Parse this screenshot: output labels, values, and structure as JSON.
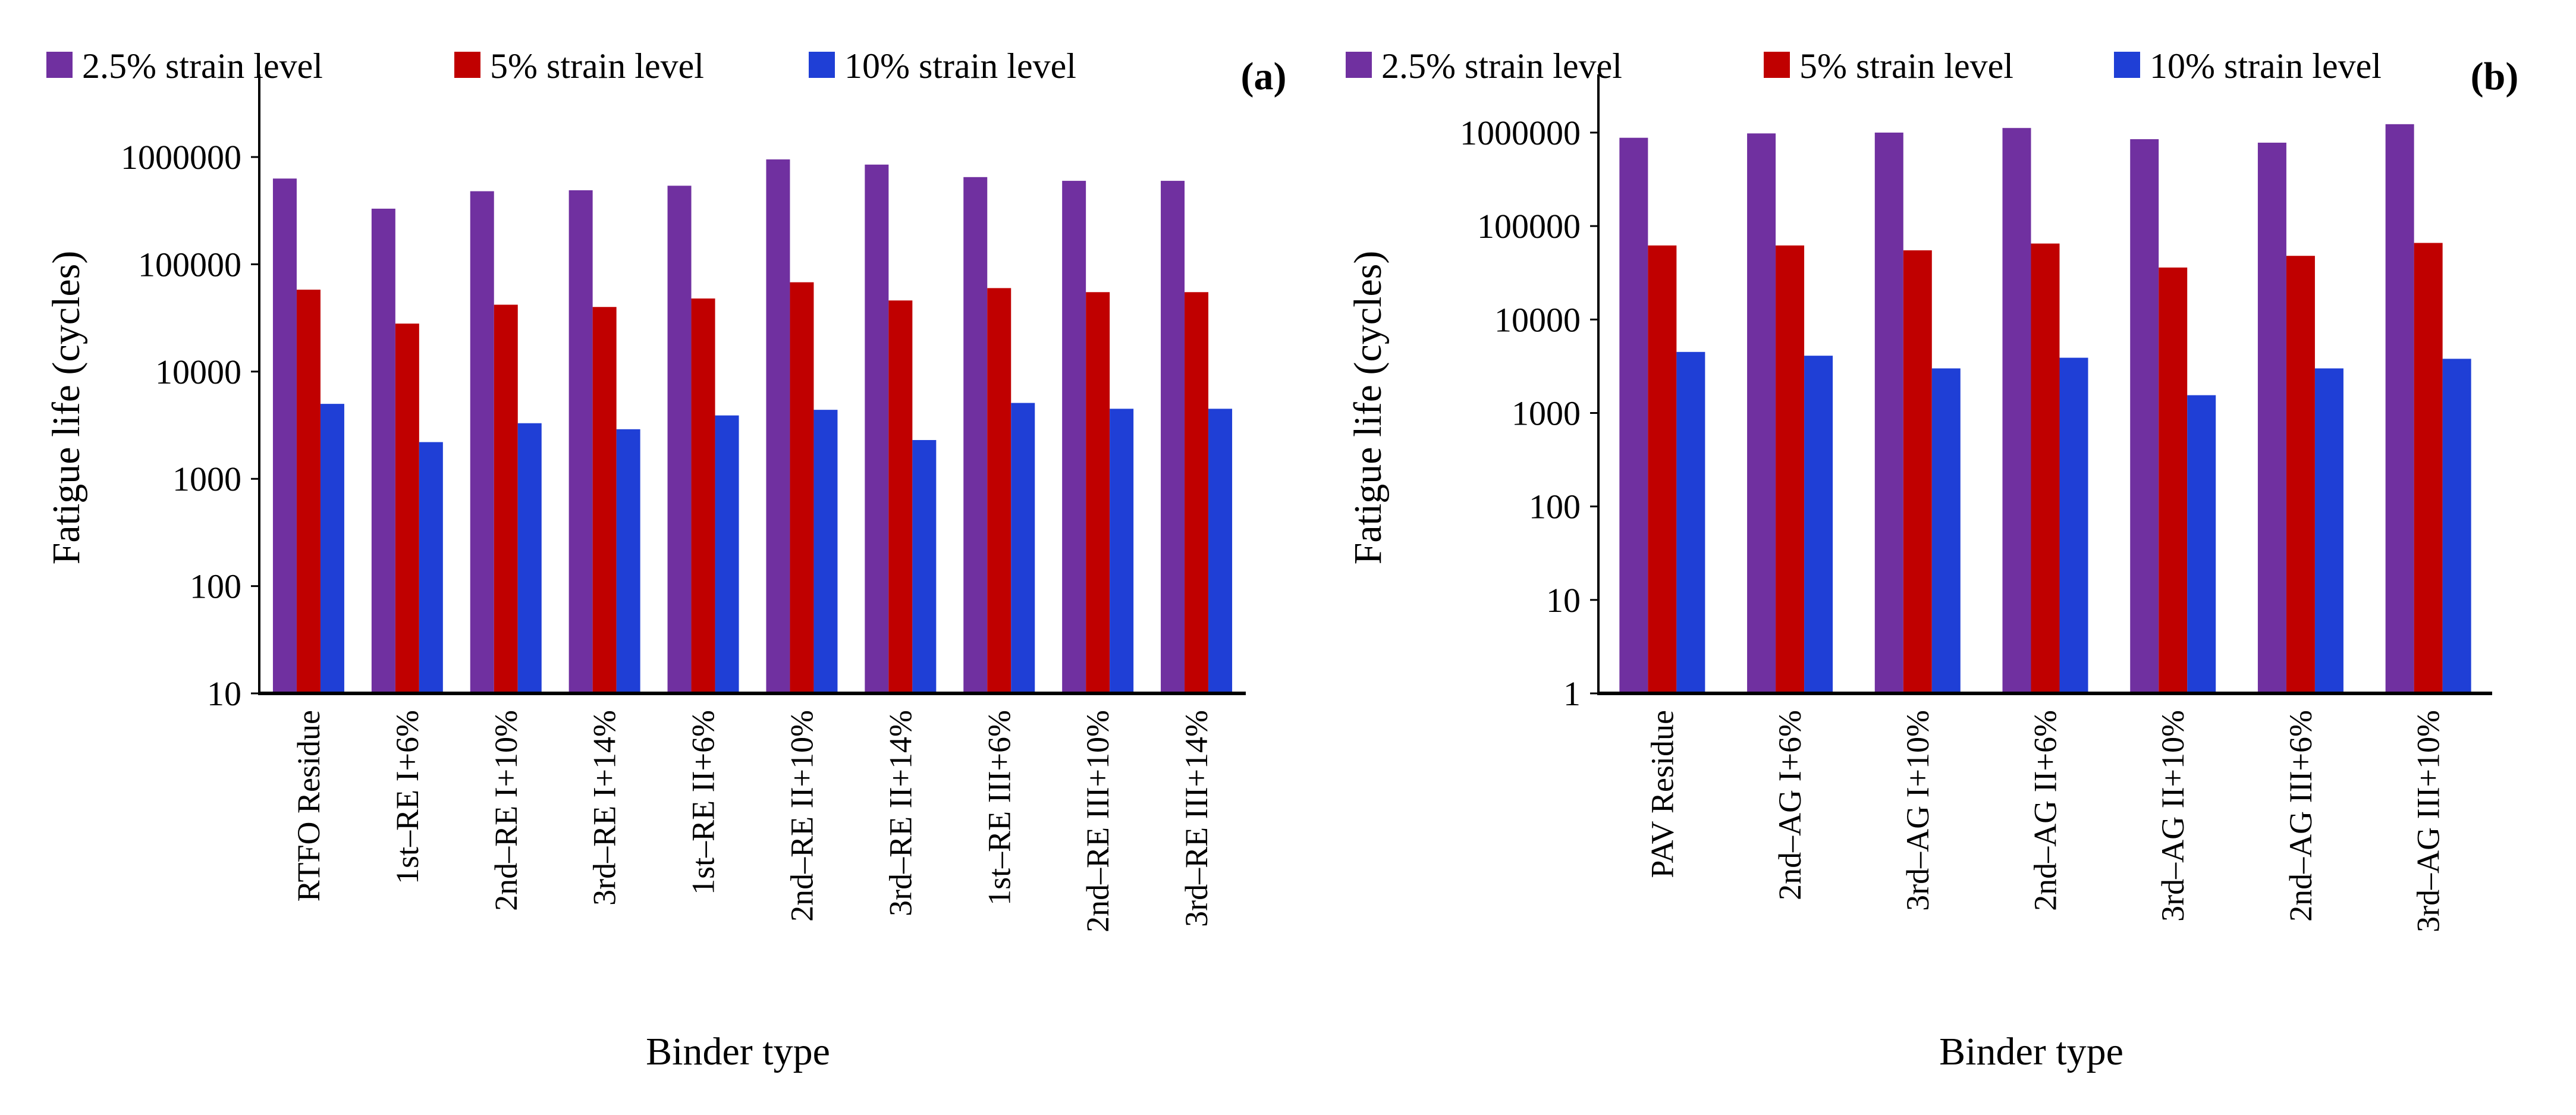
{
  "colors": {
    "s25": "#7030a0",
    "s5": "#c00000",
    "s10": "#1f3fd6"
  },
  "chart_data": [
    {
      "type": "bar",
      "panel_label": "(a)",
      "title": "",
      "xlabel": "Binder type",
      "ylabel": "Fatigue life (cycles)",
      "yscale": "log",
      "ylim": [
        10,
        5900000
      ],
      "yticks": [
        10,
        100,
        1000,
        10000,
        100000,
        1000000
      ],
      "ytick_labels": [
        "10",
        "100",
        "1000",
        "10000",
        "100000",
        "1000000"
      ],
      "legend": [
        "2.5% strain level",
        "5% strain level",
        "10% strain level"
      ],
      "legend_position": "top",
      "categories": [
        "RTFO Residue",
        "1st–RE I+6%",
        "2nd–RE I+10%",
        "3rd–RE I+14%",
        "1st–RE II+6%",
        "2nd–RE II+10%",
        "3rd–RE II+14%",
        "1st–RE III+6%",
        "2nd–RE III+10%",
        "3rd–RE III+14%"
      ],
      "series": [
        {
          "name": "2.5% strain level",
          "values": [
            630000,
            330000,
            480000,
            490000,
            540000,
            950000,
            850000,
            650000,
            600000,
            600000
          ]
        },
        {
          "name": "5% strain level",
          "values": [
            58000,
            28000,
            42000,
            40000,
            48000,
            68000,
            46000,
            60000,
            55000,
            55000
          ]
        },
        {
          "name": "10% strain level",
          "values": [
            5000,
            2200,
            3300,
            2900,
            3900,
            4400,
            2300,
            5100,
            4500,
            4500
          ]
        }
      ]
    },
    {
      "type": "bar",
      "panel_label": "(b)",
      "title": "",
      "xlabel": "Binder type",
      "ylabel": "Fatigue life (cycles)",
      "yscale": "log",
      "ylim": [
        1,
        4200000
      ],
      "yticks": [
        1,
        10,
        100,
        1000,
        10000,
        100000,
        1000000
      ],
      "ytick_labels": [
        "1",
        "10",
        "100",
        "1000",
        "10000",
        "100000",
        "1000000"
      ],
      "legend": [
        "2.5% strain level",
        "5% strain level",
        "10% strain level"
      ],
      "legend_position": "top",
      "categories": [
        "PAV Residue",
        "2nd–AG I+6%",
        "3rd–AG I+10%",
        "2nd–AG II+6%",
        "3rd–AG II+10%",
        "2nd–AG III+6%",
        "3rd–AG III+10%"
      ],
      "series": [
        {
          "name": "2.5% strain level",
          "values": [
            880000,
            980000,
            1000000,
            1120000,
            850000,
            780000,
            1230000
          ]
        },
        {
          "name": "5% strain level",
          "values": [
            62000,
            62000,
            55000,
            65000,
            36000,
            48000,
            66000
          ]
        },
        {
          "name": "10% strain level",
          "values": [
            4500,
            4100,
            3000,
            3900,
            1550,
            3000,
            3800
          ]
        }
      ]
    }
  ]
}
